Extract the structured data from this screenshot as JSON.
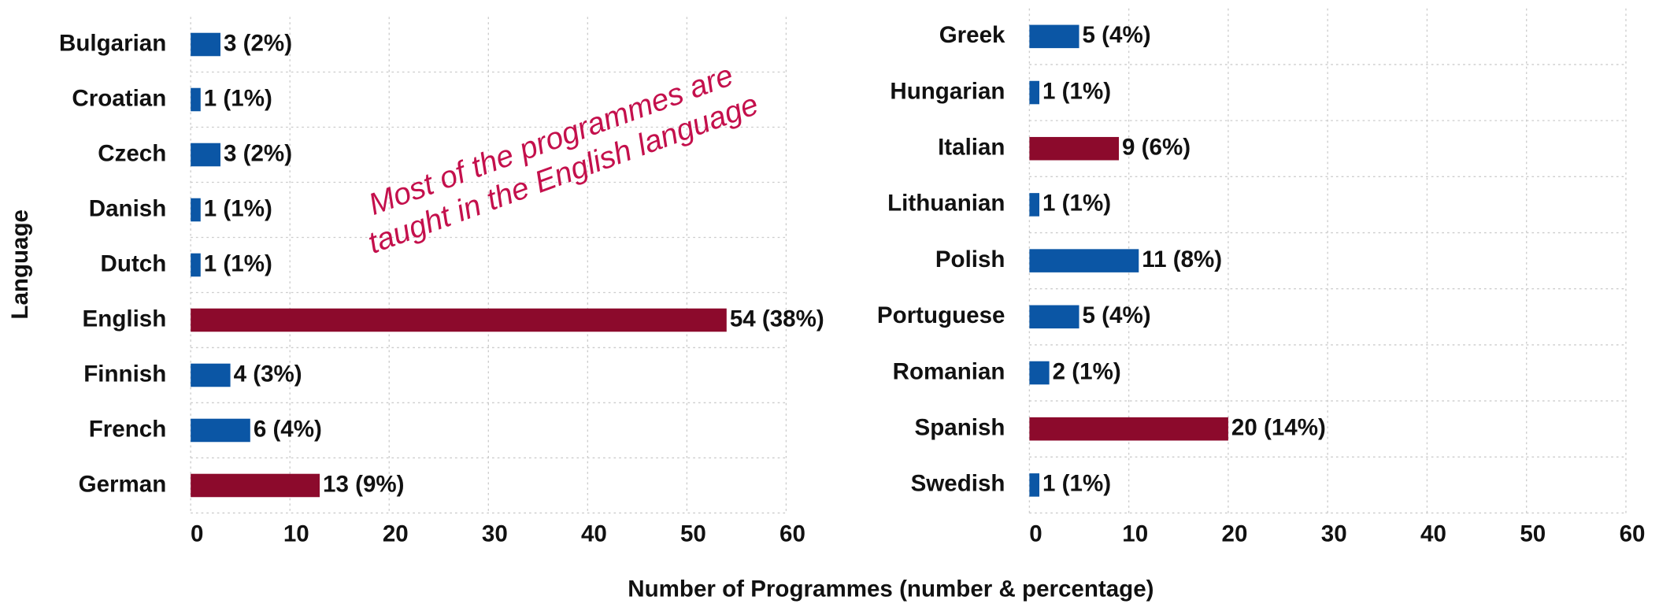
{
  "chart_data": [
    {
      "type": "barh",
      "ylabel": "Language",
      "xlabel": "Number of Programmes (number & percentage)",
      "annotation": [
        "Most of the programmes are",
        "taught in the English language"
      ],
      "categories": [
        "Bulgarian",
        "Croatian",
        "Czech",
        "Danish",
        "Dutch",
        "English",
        "Finnish",
        "French",
        "German"
      ],
      "values": [
        3,
        1,
        3,
        1,
        1,
        54,
        4,
        6,
        13
      ],
      "value_labels": [
        "3 (2%)",
        "1 (1%)",
        "3 (2%)",
        "1 (1%)",
        "1 (1%)",
        "54 (38%)",
        "4 (3%)",
        "6 (4%)",
        "13 (9%)"
      ],
      "colors": [
        "#0b56a5",
        "#0b56a5",
        "#0b56a5",
        "#0b56a5",
        "#0b56a5",
        "#8c0a2c",
        "#0b56a5",
        "#0b56a5",
        "#8c0a2c"
      ],
      "xlim": [
        0,
        60
      ],
      "xticks": [
        0,
        10,
        20,
        30,
        40,
        50,
        60
      ],
      "grid": true
    },
    {
      "type": "barh",
      "categories": [
        "Greek",
        "Hungarian",
        "Italian",
        "Lithuanian",
        "Polish",
        "Portuguese",
        "Romanian",
        "Spanish",
        "Swedish"
      ],
      "values": [
        5,
        1,
        9,
        1,
        11,
        5,
        2,
        20,
        1
      ],
      "value_labels": [
        "5 (4%)",
        "1 (1%)",
        "9 (6%)",
        "1 (1%)",
        "11 (8%)",
        "5 (4%)",
        "2 (1%)",
        "20 (14%)",
        "1 (1%)"
      ],
      "colors": [
        "#0b56a5",
        "#0b56a5",
        "#8c0a2c",
        "#0b56a5",
        "#0b56a5",
        "#0b56a5",
        "#0b56a5",
        "#8c0a2c",
        "#0b56a5"
      ],
      "xlim": [
        0,
        60
      ],
      "xticks": [
        0,
        10,
        20,
        30,
        40,
        50,
        60
      ],
      "grid": true
    }
  ]
}
